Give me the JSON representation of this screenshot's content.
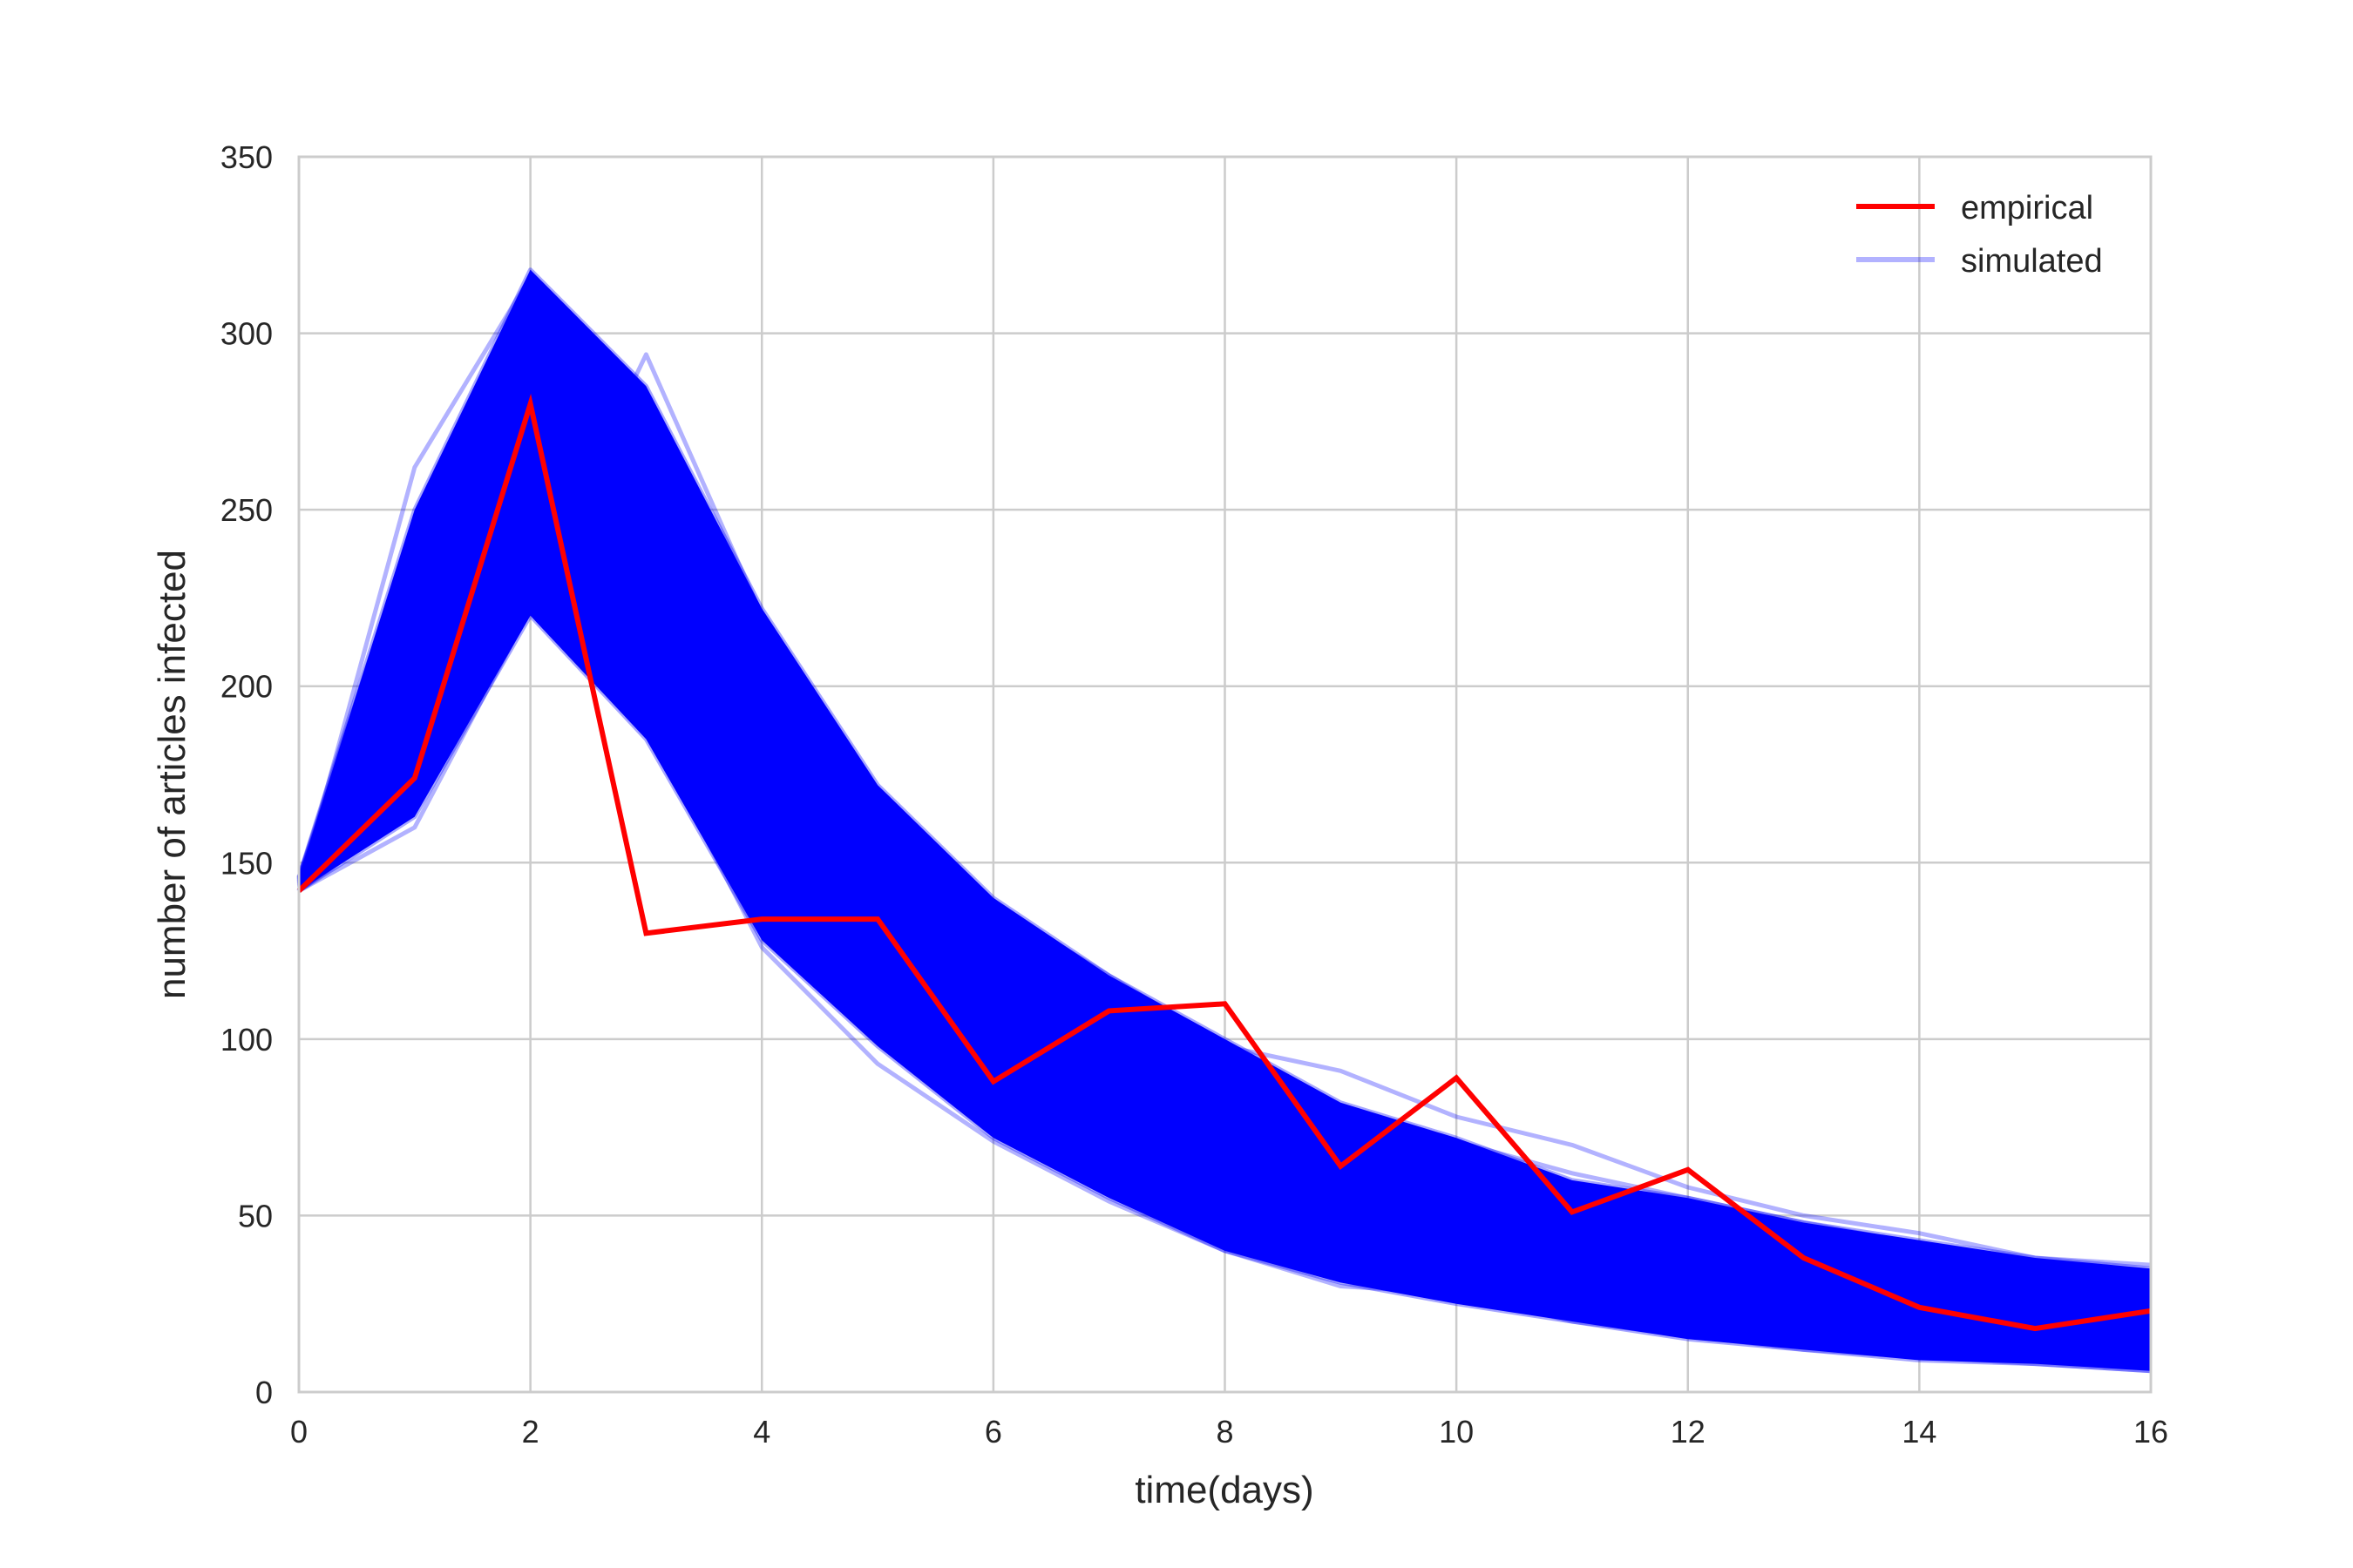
{
  "chart_data": {
    "type": "line",
    "xlabel": "time(days)",
    "ylabel": "number of articles infected",
    "xlim": [
      0,
      16
    ],
    "ylim": [
      0,
      350
    ],
    "x_ticks": [
      0,
      2,
      4,
      6,
      8,
      10,
      12,
      14,
      16
    ],
    "y_ticks": [
      0,
      50,
      100,
      150,
      200,
      250,
      300,
      350
    ],
    "x_tick_labels": [
      "0",
      "2",
      "4",
      "6",
      "8",
      "10",
      "12",
      "14",
      "16"
    ],
    "y_tick_labels": [
      "0",
      "50",
      "100",
      "150",
      "200",
      "250",
      "300",
      "350"
    ],
    "grid": true,
    "legend_position": "top-right",
    "legend": {
      "empirical": "empirical",
      "simulated": "simulated"
    },
    "colors": {
      "empirical": "#ff0000",
      "simulated": "#0000ff",
      "grid": "#cccccc",
      "text": "#262626"
    },
    "x": [
      0,
      1,
      2,
      3,
      4,
      5,
      6,
      7,
      8,
      9,
      10,
      11,
      12,
      13,
      14,
      15,
      16
    ],
    "series": [
      {
        "name": "empirical",
        "values": [
          142,
          174,
          280,
          130,
          134,
          134,
          88,
          108,
          110,
          64,
          89,
          51,
          63,
          38,
          24,
          18,
          23
        ]
      }
    ],
    "simulated": {
      "name": "simulated",
      "lower": [
        142,
        163,
        220,
        185,
        128,
        98,
        72,
        55,
        40,
        31,
        25,
        20,
        15,
        12,
        9,
        8,
        6
      ],
      "upper": [
        146,
        250,
        318,
        285,
        222,
        172,
        140,
        118,
        100,
        82,
        72,
        60,
        55,
        48,
        43,
        38,
        35
      ],
      "outliers": [
        [
          142,
          262,
          316,
          282,
          218,
          170,
          138,
          118,
          98,
          91,
          78,
          70,
          58,
          50,
          45,
          38,
          36
        ],
        [
          142,
          165,
          226,
          294,
          220,
          168,
          136,
          112,
          96,
          80,
          71,
          62,
          55,
          48,
          42,
          37,
          34
        ],
        [
          142,
          160,
          222,
          190,
          126,
          93,
          71,
          54,
          40,
          30,
          28,
          20,
          16,
          12,
          10,
          8,
          6
        ],
        [
          142,
          168,
          224,
          200,
          148,
          115,
          82,
          60,
          45,
          35,
          27,
          22,
          17,
          14,
          11,
          9,
          7
        ]
      ]
    }
  }
}
